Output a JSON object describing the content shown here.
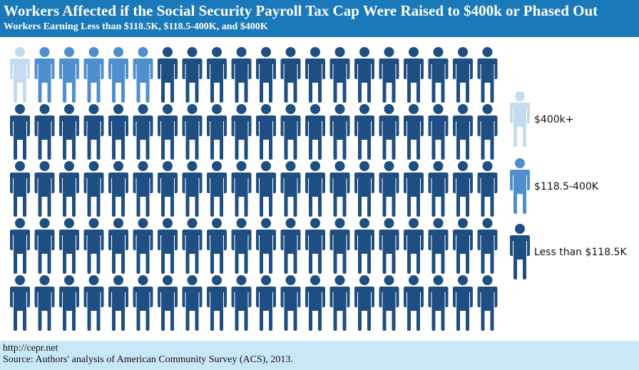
{
  "header": {
    "title": "Workers Affected if  the Social Security Payroll Tax Cap Were Raised to $400k or Phased Out",
    "subtitle": "Workers Earning Less than $118.5K, $118.5-400K, and $400K"
  },
  "chart_data": {
    "type": "pictograph",
    "grid": {
      "rows": 5,
      "columns": 20
    },
    "categories": [
      "$400k+",
      "$118.5-400K",
      "Less than $118.5K"
    ],
    "counts": [
      1,
      5,
      94
    ],
    "colors": [
      "#c5dcee",
      "#4f8fcd",
      "#1e4e82"
    ],
    "legend_position": "right"
  },
  "footer": {
    "url": "http://cepr.net",
    "source": "Source: Authors' analysis of American Community Survey (ACS), 2013."
  }
}
